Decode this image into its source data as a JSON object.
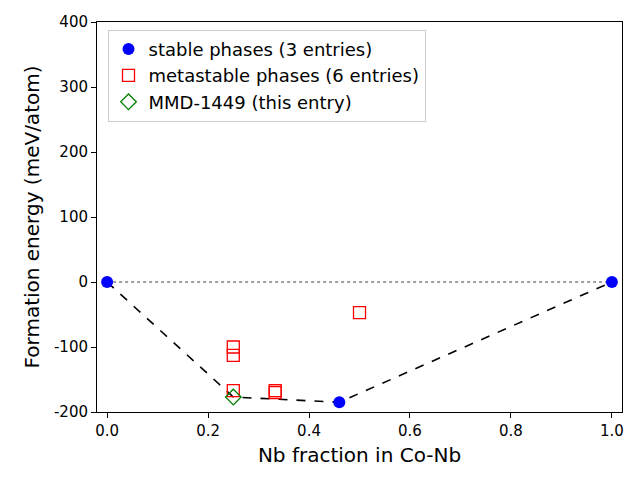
{
  "chart_data": {
    "type": "scatter",
    "x_label": "Nb fraction in Co-Nb",
    "y_label": "Formation energy (meV/atom)",
    "xlim": [
      -0.02,
      1.02
    ],
    "xticks": [
      {
        "value": 0,
        "label": "0.0"
      },
      {
        "value": 0.2,
        "label": "0.2"
      },
      {
        "value": 0.4,
        "label": "0.4"
      },
      {
        "value": 0.6,
        "label": "0.6"
      },
      {
        "value": 0.8,
        "label": "0.8"
      },
      {
        "value": 1,
        "label": "1.0"
      }
    ],
    "ylim": [
      -200,
      400
    ],
    "yticks": [
      -200,
      -100,
      0,
      100,
      200,
      300,
      400
    ],
    "grid": false,
    "legend": "upper left",
    "series": [
      {
        "type": "line",
        "color": "#808080",
        "line_style": "dotted",
        "x": [
          0,
          1
        ],
        "values": [
          0,
          0
        ]
      },
      {
        "type": "line",
        "color": "#000000",
        "line_style": "dashed",
        "x": [
          0,
          0.25,
          0.46,
          1
        ],
        "values": [
          0,
          -177,
          -185,
          0
        ]
      },
      {
        "name": "stable phases (3 entries)",
        "type": "scatter",
        "color": "#0000ff",
        "marker": "circle",
        "x": [
          0,
          0.46,
          1
        ],
        "values": [
          0,
          -185,
          0
        ]
      },
      {
        "name": "metastable phases (6 entries)",
        "type": "scatter",
        "color": "#ff0000",
        "marker": "square-open",
        "x": [
          0.25,
          0.25,
          0.25,
          0.333,
          0.333,
          0.5
        ],
        "values": [
          -100,
          -113,
          -167,
          -167,
          -170,
          -47
        ]
      },
      {
        "name": "MMD-1449 (this entry)",
        "type": "scatter",
        "color": "#008000",
        "marker": "diamond-open",
        "x": [
          0.25
        ],
        "values": [
          -177
        ]
      }
    ]
  }
}
